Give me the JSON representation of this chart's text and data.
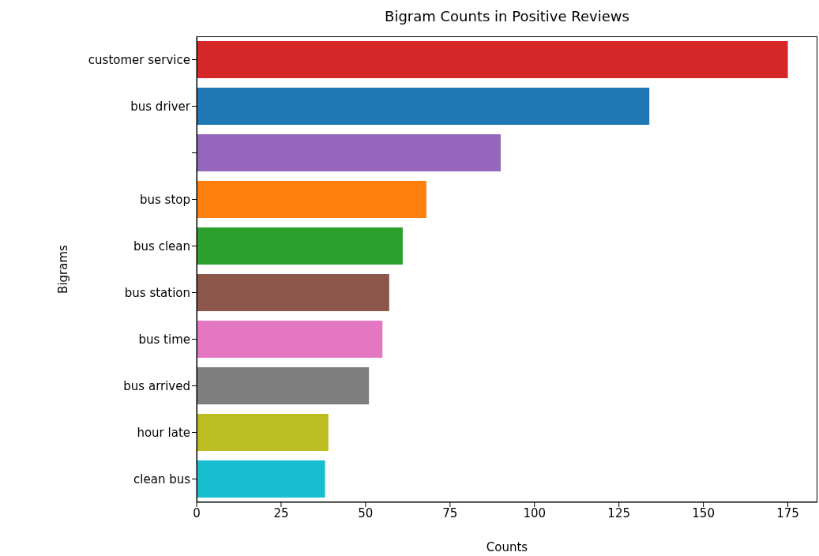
{
  "chart_data": {
    "type": "bar",
    "orientation": "horizontal",
    "title": "Bigram Counts in Positive Reviews",
    "xlabel": "Counts",
    "ylabel": "Bigrams",
    "categories": [
      "customer service",
      "bus driver",
      null,
      "bus stop",
      "bus clean",
      "bus station",
      "bus time",
      "bus arrived",
      "hour late",
      "clean bus"
    ],
    "values": [
      175,
      134,
      90,
      68,
      61,
      57,
      55,
      51,
      39,
      38
    ],
    "colors": [
      "#d62728",
      "#1f77b4",
      "#9467bd",
      "#ff7f0e",
      "#2ca02c",
      "#8c564b",
      "#e377c2",
      "#7f7f7f",
      "#bcbd22",
      "#17becf"
    ],
    "xlim": [
      0,
      183.75
    ],
    "xticks": [
      0,
      25,
      50,
      75,
      100,
      125,
      150,
      175
    ],
    "grid": false,
    "legend": false
  }
}
